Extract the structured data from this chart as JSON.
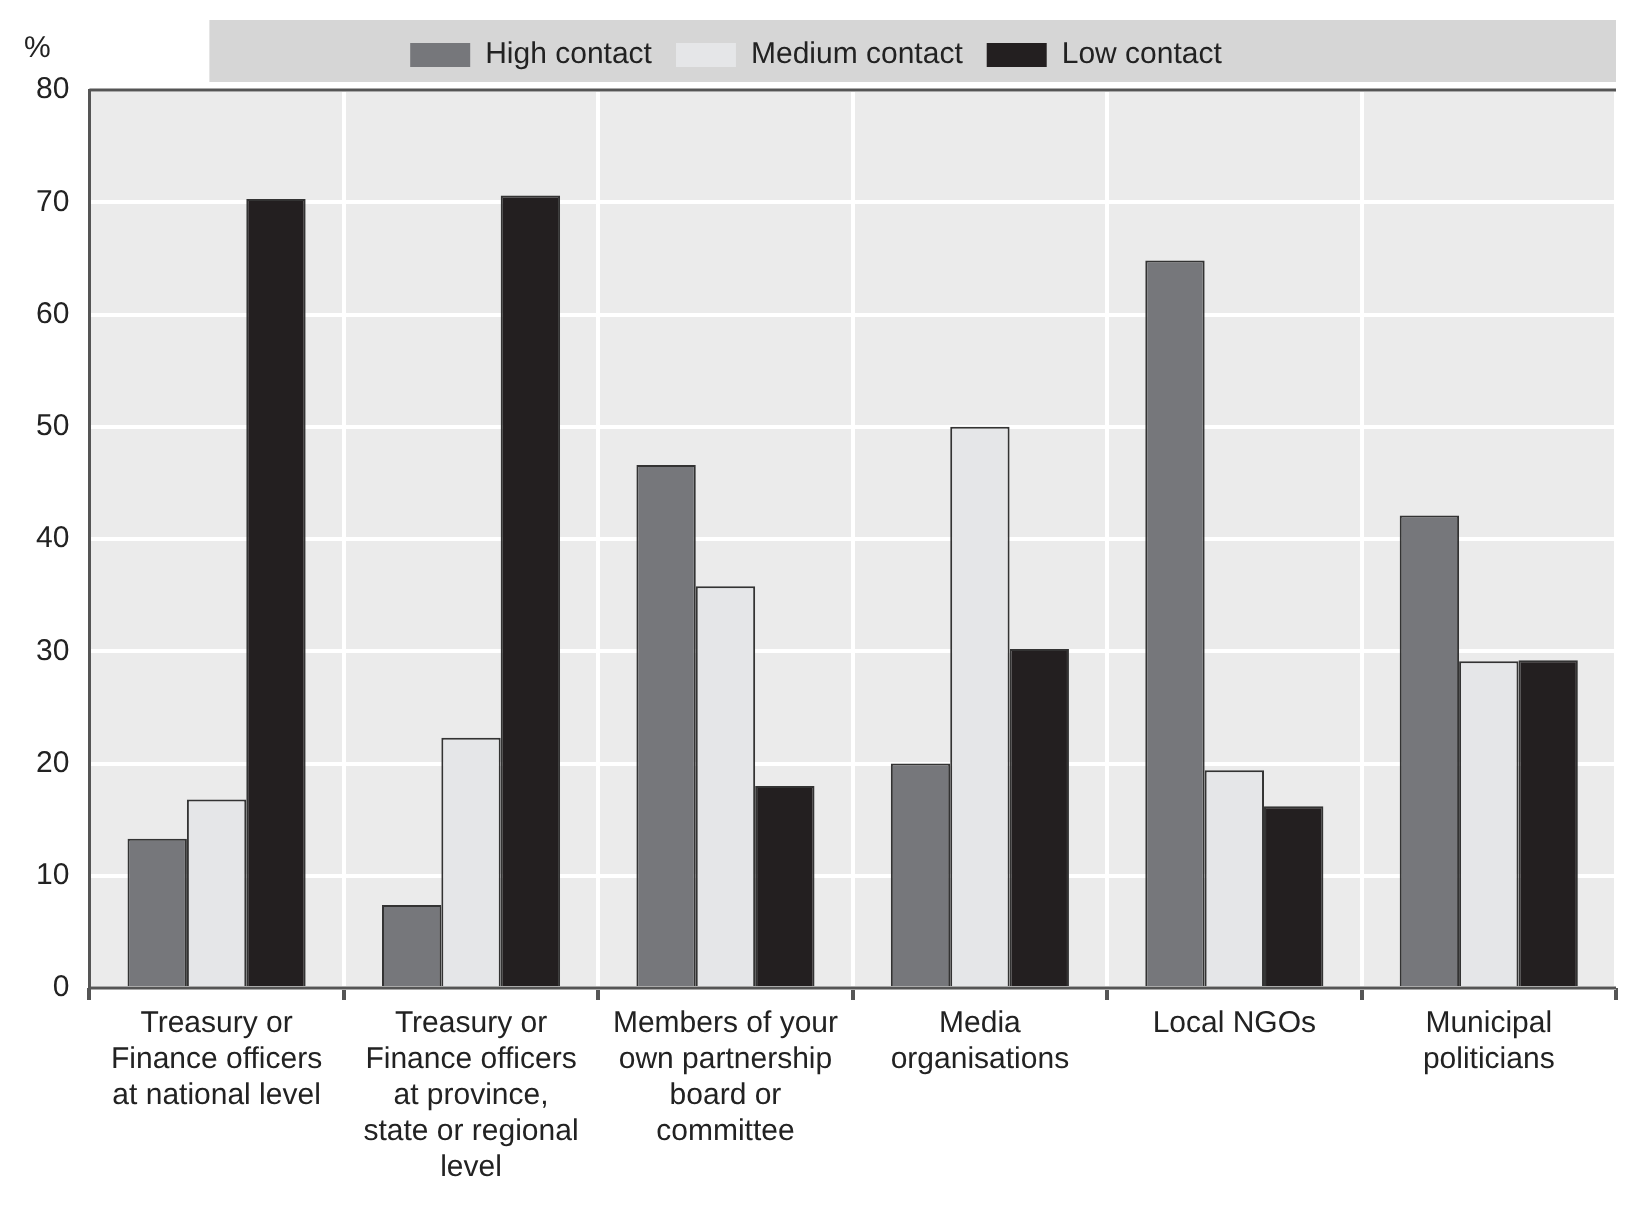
{
  "chart_data": {
    "type": "bar",
    "ylabel": "%",
    "categories": [
      "Treasury or Finance officers at national level",
      "Treasury or Finance officers at province, state or regional level",
      "Members of your own partnership board or committee",
      "Media organisations",
      "Local NGOs",
      "Municipal politicians"
    ],
    "series": [
      {
        "name": "High contact",
        "color": "#76777b",
        "values": [
          13.3,
          7.4,
          46.6,
          20,
          64.8,
          42.1
        ]
      },
      {
        "name": "Medium contact",
        "color": "#e5e6e8",
        "values": [
          16.8,
          22.3,
          35.8,
          50,
          19.4,
          29.1
        ]
      },
      {
        "name": "Low contact",
        "color": "#231f20",
        "values": [
          70.3,
          70.6,
          18,
          30.2,
          16.2,
          29.2
        ]
      }
    ],
    "ylim": [
      0,
      80
    ],
    "yticks": [
      0,
      10,
      20,
      30,
      40,
      50,
      60,
      70,
      80
    ],
    "grid": true,
    "legend": "top"
  }
}
